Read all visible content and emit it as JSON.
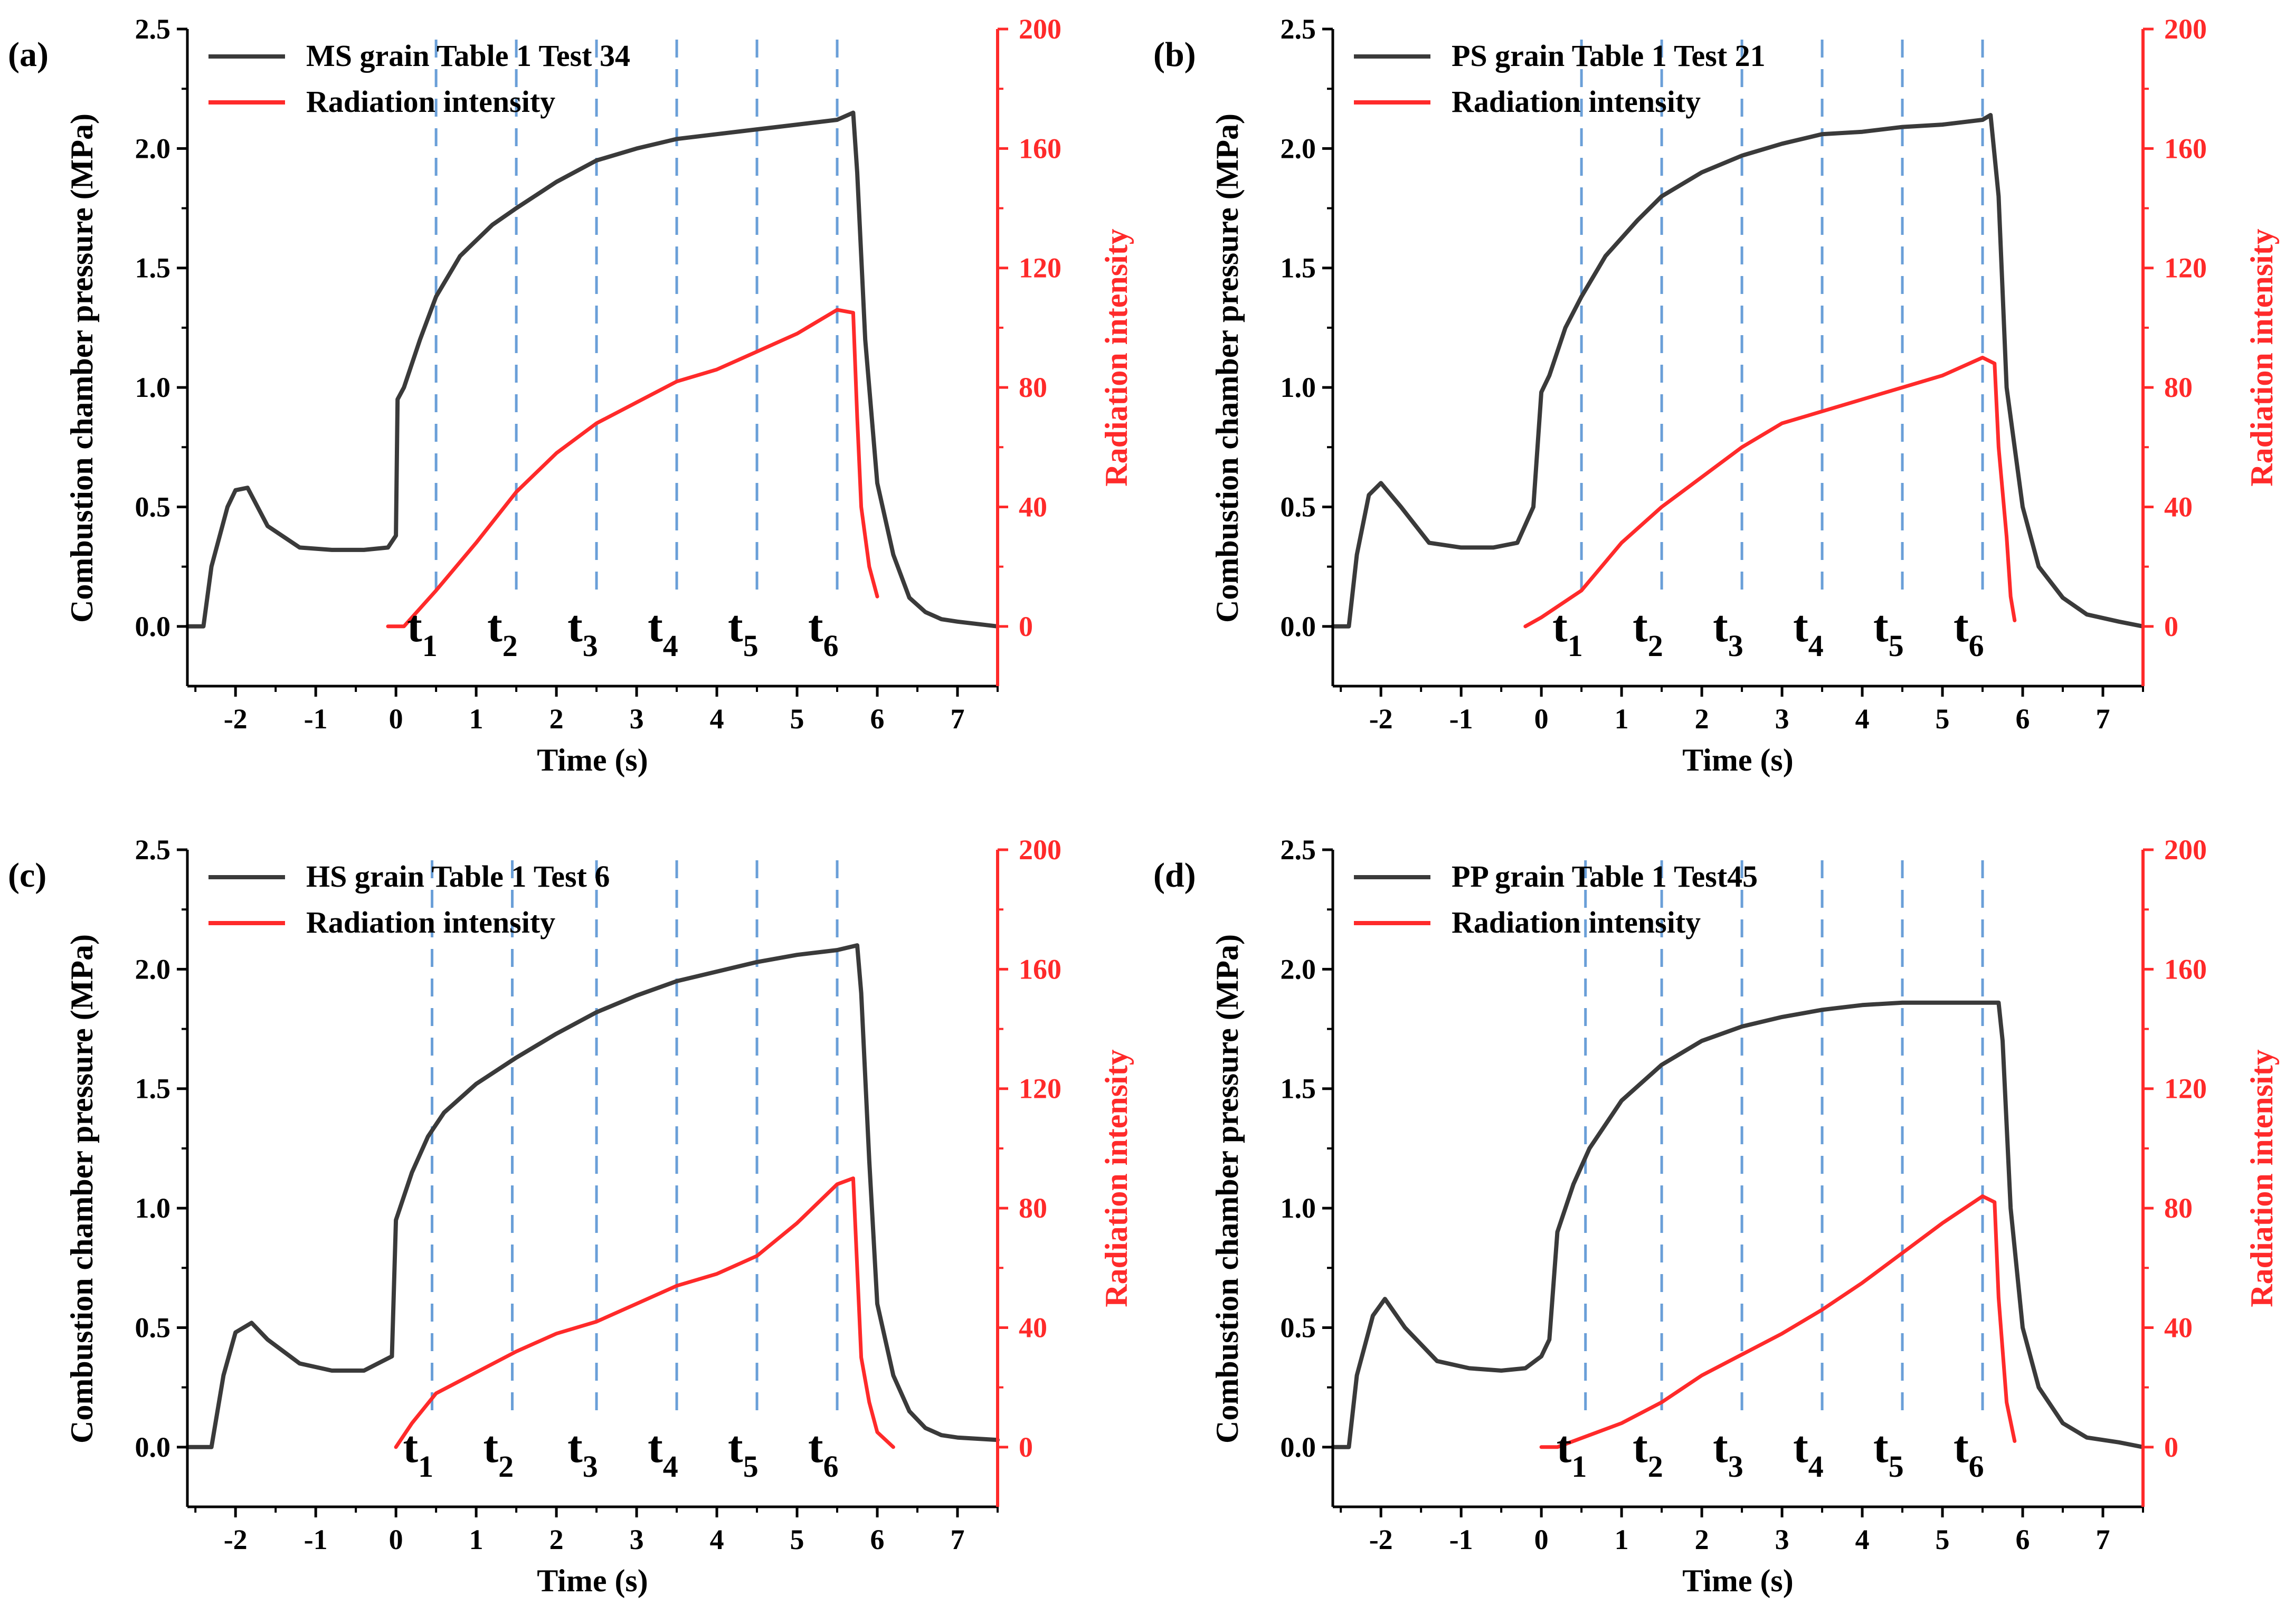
{
  "figure": {
    "panels": [
      {
        "id": "a",
        "label": "(a)",
        "legend": [
          "MS grain Table 1 Test 34",
          "Radiation intensity"
        ],
        "xlabel": "Time (s)",
        "ylabel_left": "Combustion chamber pressure (MPa)",
        "ylabel_right": "Radiation intensity"
      },
      {
        "id": "b",
        "label": "(b)",
        "legend": [
          "PS grain Table 1 Test 21",
          "Radiation intensity"
        ],
        "xlabel": "Time (s)",
        "ylabel_left": "Combustion chamber pressure (MPa)",
        "ylabel_right": "Radiation intensity"
      },
      {
        "id": "c",
        "label": "(c)",
        "legend": [
          "HS grain Table 1 Test 6",
          "Radiation intensity"
        ],
        "xlabel": "Time (s)",
        "ylabel_left": "Combustion chamber pressure (MPa)",
        "ylabel_right": "Radiation intensity"
      },
      {
        "id": "d",
        "label": "(d)",
        "legend": [
          "PP grain Table 1 Test45",
          "Radiation intensity"
        ],
        "xlabel": "Time (s)",
        "ylabel_left": "Combustion chamber pressure (MPa)",
        "ylabel_right": "Radiation intensity"
      }
    ],
    "colors": {
      "pressure": "#3a3a3a",
      "radiation": "#ff2a2a",
      "marker_line": "#6a9fd8",
      "axis": "#000000",
      "right_axis": "#ff2a2a"
    }
  },
  "chart_data": [
    {
      "panel": "a",
      "type": "line",
      "xlim": [
        -2.6,
        7.5
      ],
      "ylim_left": [
        -0.25,
        2.5
      ],
      "ylim_right": [
        -20,
        200
      ],
      "xticks": [
        "-2",
        "-1",
        "0",
        "1",
        "2",
        "3",
        "4",
        "5",
        "6",
        "7"
      ],
      "yticks_left": [
        "0.0",
        "0.5",
        "1.0",
        "1.5",
        "2.0",
        "2.5"
      ],
      "yticks_right": [
        "0",
        "40",
        "80",
        "120",
        "160",
        "200"
      ],
      "markers": {
        "x": [
          0.5,
          1.5,
          2.5,
          3.5,
          4.5,
          5.5
        ],
        "labels": [
          "t",
          "t",
          "t",
          "t",
          "t",
          "t"
        ],
        "subs": [
          "1",
          "2",
          "3",
          "4",
          "5",
          "6"
        ]
      },
      "series": [
        {
          "name": "MS grain Table 1 Test 34",
          "axis": "left",
          "x": [
            -2.6,
            -2.4,
            -2.3,
            -2.1,
            -2.0,
            -1.85,
            -1.6,
            -1.2,
            -0.8,
            -0.4,
            -0.1,
            0.0,
            0.02,
            0.1,
            0.3,
            0.5,
            0.8,
            1.2,
            1.5,
            2.0,
            2.5,
            3.0,
            3.5,
            4.0,
            4.5,
            5.0,
            5.5,
            5.7,
            5.75,
            5.85,
            6.0,
            6.2,
            6.4,
            6.6,
            6.8,
            7.0,
            7.5
          ],
          "y": [
            0.0,
            0.0,
            0.25,
            0.5,
            0.57,
            0.58,
            0.42,
            0.33,
            0.32,
            0.32,
            0.33,
            0.38,
            0.95,
            1.0,
            1.2,
            1.38,
            1.55,
            1.68,
            1.75,
            1.86,
            1.95,
            2.0,
            2.04,
            2.06,
            2.08,
            2.1,
            2.12,
            2.15,
            1.9,
            1.2,
            0.6,
            0.3,
            0.12,
            0.06,
            0.03,
            0.02,
            0.0
          ]
        },
        {
          "name": "Radiation intensity",
          "axis": "right",
          "x": [
            -0.1,
            0.1,
            0.5,
            1.0,
            1.5,
            2.0,
            2.5,
            3.0,
            3.5,
            4.0,
            4.5,
            5.0,
            5.5,
            5.7,
            5.75,
            5.8,
            5.9,
            6.0
          ],
          "y": [
            0,
            0,
            12,
            28,
            45,
            58,
            68,
            75,
            82,
            86,
            92,
            98,
            106,
            105,
            70,
            40,
            20,
            10
          ]
        }
      ]
    },
    {
      "panel": "b",
      "type": "line",
      "xlim": [
        -2.6,
        7.5
      ],
      "ylim_left": [
        -0.25,
        2.5
      ],
      "ylim_right": [
        -20,
        200
      ],
      "xticks": [
        "-2",
        "-1",
        "0",
        "1",
        "2",
        "3",
        "4",
        "5",
        "6",
        "7"
      ],
      "yticks_left": [
        "0.0",
        "0.5",
        "1.0",
        "1.5",
        "2.0",
        "2.5"
      ],
      "yticks_right": [
        "0",
        "40",
        "80",
        "120",
        "160",
        "200"
      ],
      "markers": {
        "x": [
          0.5,
          1.5,
          2.5,
          3.5,
          4.5,
          5.5
        ],
        "labels": [
          "t",
          "t",
          "t",
          "t",
          "t",
          "t"
        ],
        "subs": [
          "1",
          "2",
          "3",
          "4",
          "5",
          "6"
        ]
      },
      "series": [
        {
          "name": "PS grain Table 1 Test 21",
          "axis": "left",
          "x": [
            -2.6,
            -2.4,
            -2.3,
            -2.15,
            -2.0,
            -1.75,
            -1.4,
            -1.0,
            -0.6,
            -0.3,
            -0.1,
            0.0,
            0.1,
            0.3,
            0.5,
            0.8,
            1.2,
            1.5,
            2.0,
            2.5,
            3.0,
            3.5,
            4.0,
            4.5,
            5.0,
            5.5,
            5.6,
            5.7,
            5.8,
            6.0,
            6.2,
            6.5,
            6.8,
            7.2,
            7.5
          ],
          "y": [
            0.0,
            0.0,
            0.3,
            0.55,
            0.6,
            0.5,
            0.35,
            0.33,
            0.33,
            0.35,
            0.5,
            0.98,
            1.05,
            1.25,
            1.38,
            1.55,
            1.7,
            1.8,
            1.9,
            1.97,
            2.02,
            2.06,
            2.07,
            2.09,
            2.1,
            2.12,
            2.14,
            1.8,
            1.0,
            0.5,
            0.25,
            0.12,
            0.05,
            0.02,
            0.0
          ]
        },
        {
          "name": "Radiation intensity",
          "axis": "right",
          "x": [
            -0.2,
            0.0,
            0.5,
            1.0,
            1.5,
            2.0,
            2.5,
            3.0,
            3.5,
            4.0,
            4.5,
            5.0,
            5.5,
            5.65,
            5.7,
            5.8,
            5.85,
            5.9
          ],
          "y": [
            0,
            3,
            12,
            28,
            40,
            50,
            60,
            68,
            72,
            76,
            80,
            84,
            90,
            88,
            60,
            30,
            10,
            2
          ]
        }
      ]
    },
    {
      "panel": "c",
      "type": "line",
      "xlim": [
        -2.6,
        7.5
      ],
      "ylim_left": [
        -0.25,
        2.5
      ],
      "ylim_right": [
        -20,
        200
      ],
      "xticks": [
        "-2",
        "-1",
        "0",
        "1",
        "2",
        "3",
        "4",
        "5",
        "6",
        "7"
      ],
      "yticks_left": [
        "0.0",
        "0.5",
        "1.0",
        "1.5",
        "2.0",
        "2.5"
      ],
      "yticks_right": [
        "0",
        "40",
        "80",
        "120",
        "160",
        "200"
      ],
      "markers": {
        "x": [
          0.45,
          1.45,
          2.5,
          3.5,
          4.5,
          5.5
        ],
        "labels": [
          "t",
          "t",
          "t",
          "t",
          "t",
          "t"
        ],
        "subs": [
          "1",
          "2",
          "3",
          "4",
          "5",
          "6"
        ]
      },
      "series": [
        {
          "name": "HS grain Table 1 Test 6",
          "axis": "left",
          "x": [
            -2.6,
            -2.3,
            -2.15,
            -2.0,
            -1.8,
            -1.6,
            -1.2,
            -0.8,
            -0.4,
            -0.05,
            0.0,
            0.05,
            0.2,
            0.4,
            0.6,
            1.0,
            1.5,
            2.0,
            2.5,
            3.0,
            3.5,
            4.0,
            4.5,
            5.0,
            5.5,
            5.75,
            5.8,
            5.9,
            6.0,
            6.2,
            6.4,
            6.6,
            6.8,
            7.0,
            7.5
          ],
          "y": [
            0.0,
            0.0,
            0.3,
            0.48,
            0.52,
            0.45,
            0.35,
            0.32,
            0.32,
            0.38,
            0.95,
            1.0,
            1.15,
            1.3,
            1.4,
            1.52,
            1.63,
            1.73,
            1.82,
            1.89,
            1.95,
            1.99,
            2.03,
            2.06,
            2.08,
            2.1,
            1.9,
            1.2,
            0.6,
            0.3,
            0.15,
            0.08,
            0.05,
            0.04,
            0.03
          ]
        },
        {
          "name": "Radiation intensity",
          "axis": "right",
          "x": [
            0.0,
            0.2,
            0.5,
            1.0,
            1.5,
            2.0,
            2.5,
            3.0,
            3.5,
            4.0,
            4.5,
            5.0,
            5.5,
            5.7,
            5.75,
            5.8,
            5.9,
            6.0,
            6.2
          ],
          "y": [
            0,
            8,
            18,
            25,
            32,
            38,
            42,
            48,
            54,
            58,
            64,
            75,
            88,
            90,
            60,
            30,
            15,
            5,
            0
          ]
        }
      ]
    },
    {
      "panel": "d",
      "type": "line",
      "xlim": [
        -2.6,
        7.5
      ],
      "ylim_left": [
        -0.25,
        2.5
      ],
      "ylim_right": [
        -20,
        200
      ],
      "xticks": [
        "-2",
        "-1",
        "0",
        "1",
        "2",
        "3",
        "4",
        "5",
        "6",
        "7"
      ],
      "yticks_left": [
        "0.0",
        "0.5",
        "1.0",
        "1.5",
        "2.0",
        "2.5"
      ],
      "yticks_right": [
        "0",
        "40",
        "80",
        "120",
        "160",
        "200"
      ],
      "markers": {
        "x": [
          0.55,
          1.5,
          2.5,
          3.5,
          4.5,
          5.5
        ],
        "labels": [
          "t",
          "t",
          "t",
          "t",
          "t",
          "t"
        ],
        "subs": [
          "1",
          "2",
          "3",
          "4",
          "5",
          "6"
        ]
      },
      "series": [
        {
          "name": "PP grain Table 1 Test45",
          "axis": "left",
          "x": [
            -2.6,
            -2.4,
            -2.3,
            -2.1,
            -1.95,
            -1.7,
            -1.3,
            -0.9,
            -0.5,
            -0.2,
            0.0,
            0.1,
            0.2,
            0.4,
            0.6,
            1.0,
            1.5,
            2.0,
            2.5,
            3.0,
            3.5,
            4.0,
            4.5,
            5.0,
            5.5,
            5.7,
            5.75,
            5.85,
            6.0,
            6.2,
            6.5,
            6.8,
            7.2,
            7.5
          ],
          "y": [
            0.0,
            0.0,
            0.3,
            0.55,
            0.62,
            0.5,
            0.36,
            0.33,
            0.32,
            0.33,
            0.38,
            0.45,
            0.9,
            1.1,
            1.25,
            1.45,
            1.6,
            1.7,
            1.76,
            1.8,
            1.83,
            1.85,
            1.86,
            1.86,
            1.86,
            1.86,
            1.7,
            1.0,
            0.5,
            0.25,
            0.1,
            0.04,
            0.02,
            0.0
          ]
        },
        {
          "name": "Radiation intensity",
          "axis": "right",
          "x": [
            0.0,
            0.2,
            0.5,
            1.0,
            1.5,
            2.0,
            2.5,
            3.0,
            3.5,
            4.0,
            4.5,
            5.0,
            5.5,
            5.65,
            5.7,
            5.8,
            5.9
          ],
          "y": [
            0,
            0,
            3,
            8,
            15,
            24,
            31,
            38,
            46,
            55,
            65,
            75,
            84,
            82,
            50,
            15,
            2
          ]
        }
      ]
    }
  ]
}
